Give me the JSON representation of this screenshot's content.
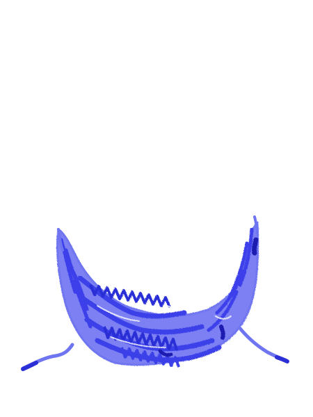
{
  "image": {
    "subject": "blue-scribble-hammock",
    "background_color": "#ffffff",
    "colors": {
      "light": "#6f74f0",
      "mid": "#4a4ff0",
      "dark": "#2b2fd6",
      "deep": "#1a1cb0"
    }
  }
}
